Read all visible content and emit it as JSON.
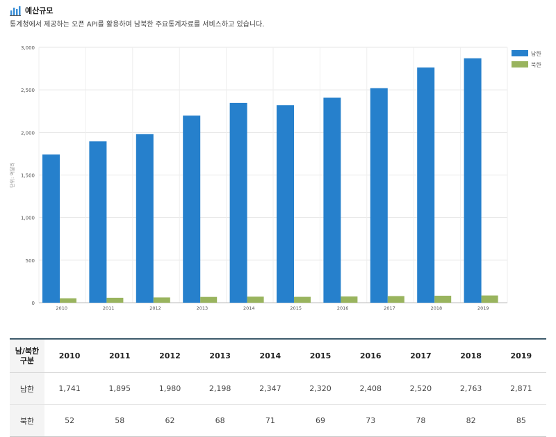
{
  "header": {
    "title": "예산규모",
    "subtitle": "통계청에서 제공하는 오픈 API를 활용하여 남북한 주요통계자료를 서비스하고 있습니다.",
    "icon": "bar-chart-icon"
  },
  "chart_data": {
    "type": "bar",
    "title": "",
    "xlabel": "",
    "ylabel": "단위: 억달러",
    "categories": [
      "2010",
      "2011",
      "2012",
      "2013",
      "2014",
      "2015",
      "2016",
      "2017",
      "2018",
      "2019"
    ],
    "series": [
      {
        "name": "남한",
        "color": "#2680cc",
        "values": [
          1741,
          1895,
          1980,
          2198,
          2347,
          2320,
          2408,
          2520,
          2763,
          2871
        ]
      },
      {
        "name": "북한",
        "color": "#99b45e",
        "values": [
          52,
          58,
          62,
          68,
          71,
          69,
          73,
          78,
          82,
          85
        ]
      }
    ],
    "ylim": [
      0,
      3000
    ],
    "yticks": [
      0,
      500,
      1000,
      1500,
      2000,
      2500,
      3000
    ],
    "ytick_labels": [
      "0",
      "500",
      "1,000",
      "1,500",
      "2,000",
      "2,500",
      "3,000"
    ],
    "grid": true,
    "legend_position": "top-right"
  },
  "table": {
    "corner_line1": "남/북한",
    "corner_line2": "구분",
    "years": [
      "2010",
      "2011",
      "2012",
      "2013",
      "2014",
      "2015",
      "2016",
      "2017",
      "2018",
      "2019"
    ],
    "rows": [
      {
        "label": "남한",
        "cells": [
          "1,741",
          "1,895",
          "1,980",
          "2,198",
          "2,347",
          "2,320",
          "2,408",
          "2,520",
          "2,763",
          "2,871"
        ]
      },
      {
        "label": "북한",
        "cells": [
          "52",
          "58",
          "62",
          "68",
          "71",
          "69",
          "73",
          "78",
          "82",
          "85"
        ]
      }
    ]
  }
}
